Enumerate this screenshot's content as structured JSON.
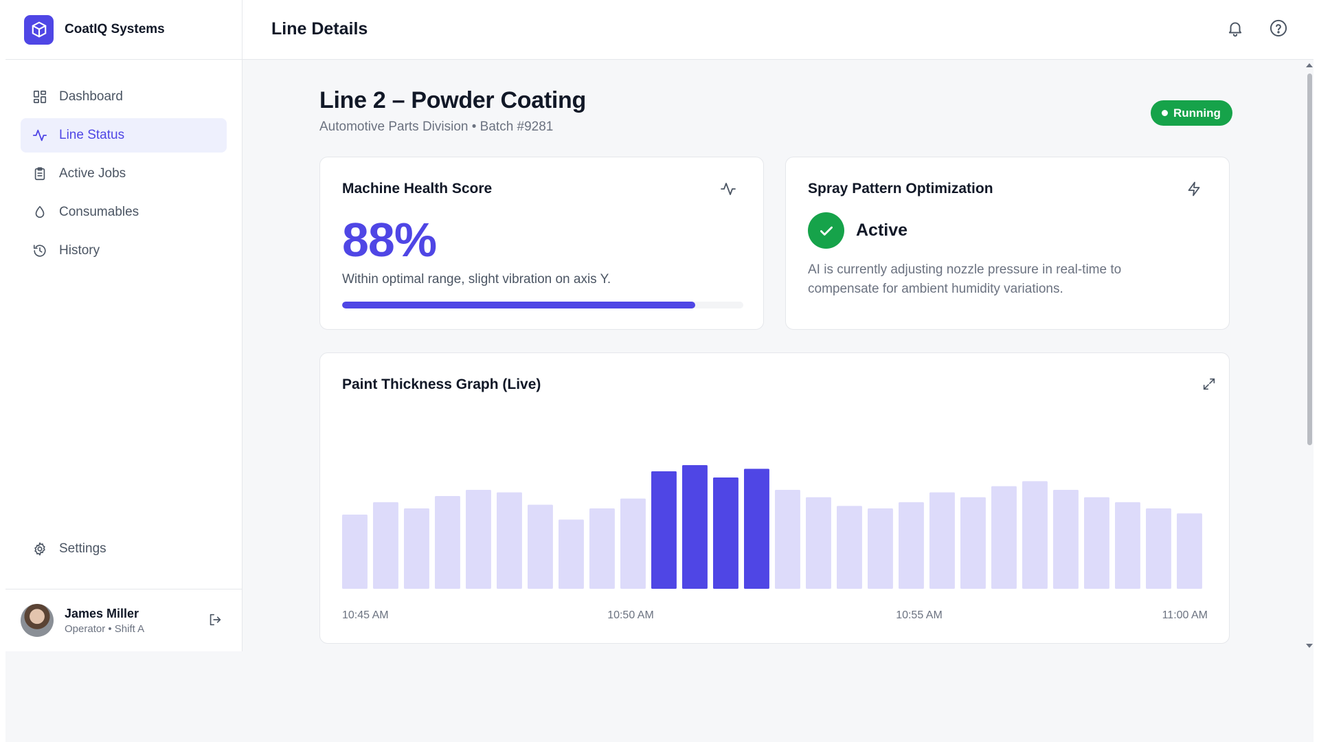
{
  "app": {
    "name": "CoatIQ Systems",
    "logo_icon": "cube-icon"
  },
  "header": {
    "title": "Line Details",
    "notification_icon": "bell-icon",
    "help_icon": "help-circle-icon"
  },
  "sidebar": {
    "items": [
      {
        "label": "Dashboard",
        "icon": "grid-icon",
        "active": false
      },
      {
        "label": "Line Status",
        "icon": "activity-icon",
        "active": true
      },
      {
        "label": "Active Jobs",
        "icon": "clipboard-icon",
        "active": false
      },
      {
        "label": "Consumables",
        "icon": "droplet-icon",
        "active": false
      },
      {
        "label": "History",
        "icon": "history-icon",
        "active": false
      }
    ],
    "settings": {
      "label": "Settings",
      "icon": "gear-icon"
    },
    "user": {
      "name": "James Miller",
      "role": "Operator • Shift A",
      "logout_icon": "logout-icon"
    }
  },
  "page": {
    "title": "Line 2 – Powder Coating",
    "subtitle": "Automotive Parts Division • Batch #9281",
    "status": "Running"
  },
  "health_card": {
    "title": "Machine Health Score",
    "value": "88%",
    "fraction": 0.88,
    "description": "Within optimal range, slight vibration on axis Y."
  },
  "spray_card": {
    "title": "Spray Pattern Optimization",
    "status": "Active",
    "description": "AI is currently adjusting nozzle pressure in real-time to compensate for ambient humidity variations."
  },
  "chart_card": {
    "title": "Paint Thickness Graph (Live)",
    "expand_icon": "expand-icon"
  },
  "chart_data": {
    "type": "bar",
    "title": "Paint Thickness Graph (Live)",
    "xlabel": "",
    "ylabel": "",
    "x_tick_labels": [
      "10:45 AM",
      "10:50 AM",
      "10:55 AM",
      "11:00 AM"
    ],
    "values": [
      60,
      70,
      65,
      75,
      80,
      78,
      68,
      56,
      65,
      73,
      95,
      100,
      90,
      97,
      80,
      74,
      67,
      65,
      70,
      78,
      74,
      83,
      87,
      80,
      74,
      70,
      65,
      61
    ],
    "highlighted": [
      false,
      false,
      false,
      false,
      false,
      false,
      false,
      false,
      false,
      false,
      true,
      true,
      true,
      true,
      false,
      false,
      false,
      false,
      false,
      false,
      false,
      false,
      false,
      false,
      false,
      false,
      false,
      false
    ],
    "ylim": [
      0,
      100
    ],
    "grid": false,
    "colors": {
      "normal": "#dddbfa",
      "highlight": "#4f46e5"
    }
  },
  "colors": {
    "accent": "#4f46e5",
    "success": "#16a34a"
  }
}
